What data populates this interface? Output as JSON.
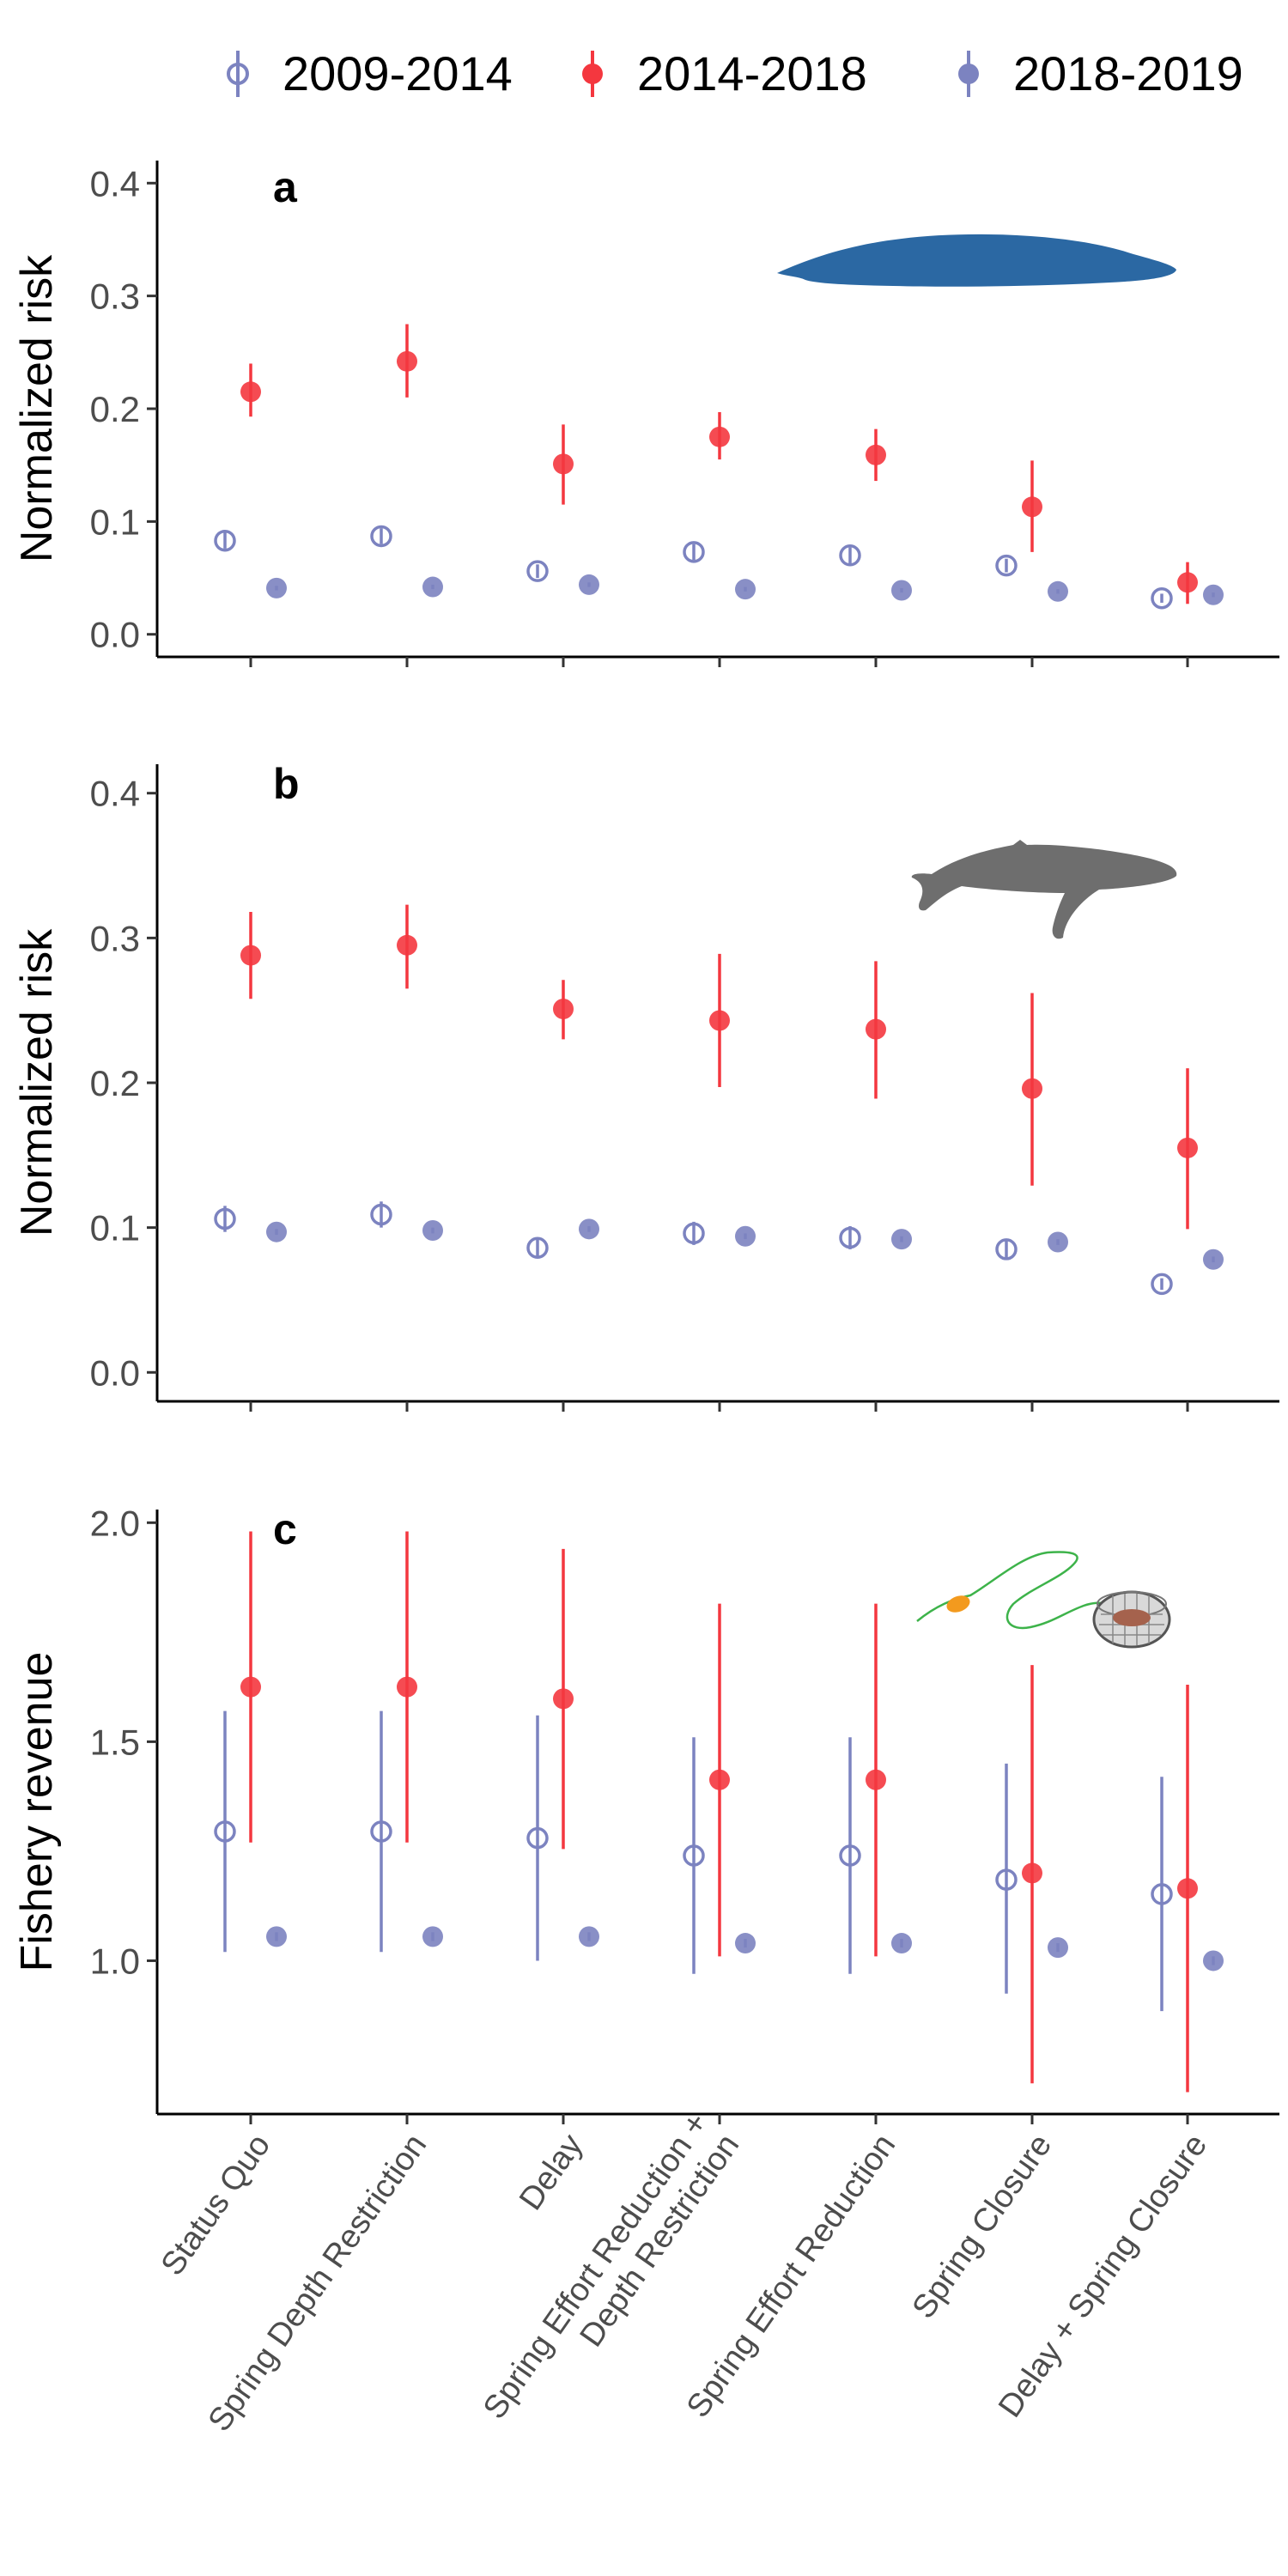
{
  "legend": [
    {
      "name": "2009-2014",
      "style": "open",
      "color": "#7c83c0"
    },
    {
      "name": "2014-2018",
      "style": "filled",
      "color": "#f4373f"
    },
    {
      "name": "2018-2019",
      "style": "filled",
      "color": "#7c83c0"
    }
  ],
  "icons": [
    "blue-whale-icon",
    "humpback-whale-icon",
    "crab-pot-icon"
  ],
  "chart_data": [
    {
      "type": "scatter",
      "panel": "a",
      "title": "",
      "xlabel": "",
      "ylabel": "Normalized risk",
      "ylim": [
        -0.02,
        0.42
      ],
      "yticks": [
        0.0,
        0.1,
        0.2,
        0.3,
        0.4
      ],
      "ytick_labels": [
        "0.0",
        "0.1",
        "0.2",
        "0.3",
        "0.4"
      ],
      "categories": [
        "Status Quo",
        "Spring Depth Restriction",
        "Delay",
        "Spring Effort Reduction + Depth Restriction",
        "Spring Effort Reduction",
        "Spring Closure",
        "Delay + Spring Closure"
      ],
      "series": [
        {
          "name": "2009-2014",
          "values": [
            0.083,
            0.087,
            0.056,
            0.073,
            0.07,
            0.061,
            0.032
          ],
          "lower": [
            0.076,
            0.08,
            0.05,
            0.066,
            0.063,
            0.055,
            0.028
          ],
          "upper": [
            0.09,
            0.094,
            0.062,
            0.08,
            0.077,
            0.067,
            0.036
          ]
        },
        {
          "name": "2014-2018",
          "values": [
            0.215,
            0.242,
            0.151,
            0.175,
            0.159,
            0.113,
            0.046
          ],
          "lower": [
            0.193,
            0.21,
            0.115,
            0.155,
            0.136,
            0.073,
            0.027
          ],
          "upper": [
            0.24,
            0.275,
            0.186,
            0.197,
            0.182,
            0.154,
            0.064
          ]
        },
        {
          "name": "2018-2019",
          "values": [
            0.041,
            0.042,
            0.044,
            0.04,
            0.039,
            0.038,
            0.035
          ],
          "lower": [
            0.039,
            0.04,
            0.042,
            0.038,
            0.037,
            0.036,
            0.033
          ],
          "upper": [
            0.043,
            0.044,
            0.046,
            0.042,
            0.041,
            0.04,
            0.037
          ]
        }
      ]
    },
    {
      "type": "scatter",
      "panel": "b",
      "title": "",
      "xlabel": "",
      "ylabel": "Normalized risk",
      "ylim": [
        -0.02,
        0.42
      ],
      "yticks": [
        0.0,
        0.1,
        0.2,
        0.3,
        0.4
      ],
      "ytick_labels": [
        "0.0",
        "0.1",
        "0.2",
        "0.3",
        "0.4"
      ],
      "categories": [
        "Status Quo",
        "Spring Depth Restriction",
        "Delay",
        "Spring Effort Reduction + Depth Restriction",
        "Spring Effort Reduction",
        "Spring Closure",
        "Delay + Spring Closure"
      ],
      "series": [
        {
          "name": "2009-2014",
          "values": [
            0.106,
            0.109,
            0.086,
            0.096,
            0.093,
            0.085,
            0.061
          ],
          "lower": [
            0.097,
            0.1,
            0.08,
            0.088,
            0.085,
            0.079,
            0.057
          ],
          "upper": [
            0.115,
            0.118,
            0.092,
            0.104,
            0.101,
            0.091,
            0.065
          ]
        },
        {
          "name": "2014-2018",
          "values": [
            0.288,
            0.295,
            0.251,
            0.243,
            0.237,
            0.196,
            0.155
          ],
          "lower": [
            0.258,
            0.265,
            0.23,
            0.197,
            0.189,
            0.129,
            0.099
          ],
          "upper": [
            0.318,
            0.323,
            0.271,
            0.289,
            0.284,
            0.262,
            0.21
          ]
        },
        {
          "name": "2018-2019",
          "values": [
            0.097,
            0.098,
            0.099,
            0.094,
            0.092,
            0.09,
            0.078
          ],
          "lower": [
            0.095,
            0.096,
            0.097,
            0.092,
            0.09,
            0.088,
            0.076
          ],
          "upper": [
            0.099,
            0.1,
            0.101,
            0.096,
            0.094,
            0.092,
            0.08
          ]
        }
      ]
    },
    {
      "type": "scatter",
      "panel": "c",
      "title": "",
      "xlabel": "",
      "ylabel": "Fishery revenue",
      "ylim": [
        0.65,
        2.03
      ],
      "yticks": [
        1.0,
        1.5,
        2.0
      ],
      "ytick_labels": [
        "1.0",
        "1.5",
        "2.0"
      ],
      "categories": [
        "Status Quo",
        "Spring Depth Restriction",
        "Delay",
        "Spring Effort Reduction + Depth Restriction",
        "Spring Effort Reduction",
        "Spring Closure",
        "Delay + Spring Closure"
      ],
      "series": [
        {
          "name": "2009-2014",
          "values": [
            1.295,
            1.295,
            1.28,
            1.24,
            1.24,
            1.185,
            1.152
          ],
          "lower": [
            1.02,
            1.02,
            1.0,
            0.97,
            0.97,
            0.925,
            0.885
          ],
          "upper": [
            1.57,
            1.57,
            1.56,
            1.51,
            1.51,
            1.45,
            1.42
          ]
        },
        {
          "name": "2014-2018",
          "values": [
            1.625,
            1.625,
            1.598,
            1.413,
            1.413,
            1.2,
            1.165
          ],
          "lower": [
            1.27,
            1.27,
            1.255,
            1.01,
            1.01,
            0.72,
            0.7
          ],
          "upper": [
            1.98,
            1.98,
            1.94,
            1.815,
            1.815,
            1.675,
            1.63
          ]
        },
        {
          "name": "2018-2019",
          "values": [
            1.055,
            1.055,
            1.055,
            1.04,
            1.04,
            1.03,
            1.0
          ],
          "lower": [
            1.045,
            1.045,
            1.045,
            1.03,
            1.03,
            1.02,
            0.99
          ],
          "upper": [
            1.065,
            1.065,
            1.065,
            1.05,
            1.05,
            1.04,
            1.01
          ]
        }
      ]
    }
  ],
  "x_axis": {
    "labels": [
      [
        "Status Quo"
      ],
      [
        "Spring Depth Restriction"
      ],
      [
        "Delay"
      ],
      [
        "Spring Effort Reduction +",
        "Depth Restriction"
      ],
      [
        "Spring Effort Reduction"
      ],
      [
        "Spring Closure"
      ],
      [
        "Delay + Spring Closure"
      ]
    ]
  }
}
